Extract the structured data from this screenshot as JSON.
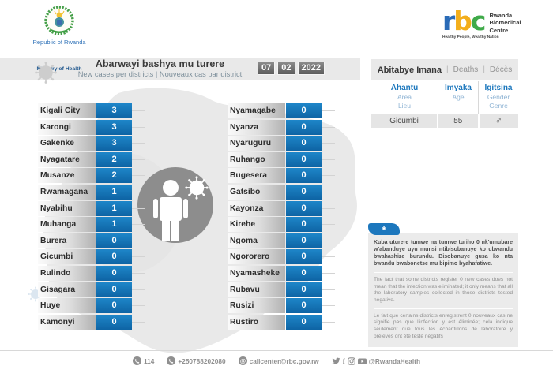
{
  "colors": {
    "accent_blue": "#1478bd",
    "band_gray": "#e9e9e9",
    "date_box_gray": "#6f6f6f",
    "note_bg": "#ebebeb",
    "muted_gray": "#8f8f8f",
    "rbc_blue": "#2a6bb7",
    "rbc_yellow": "#f3ae1b",
    "rbc_green": "#3faa49"
  },
  "ministry": {
    "country": "Republic of Rwanda",
    "name": "Ministry of Health"
  },
  "rbc": {
    "r": "r",
    "b": "b",
    "c": "c",
    "name_lines": [
      "Rwanda",
      "Biomedical",
      "Centre"
    ],
    "tagline": "Healthy People, Wealthy Nation"
  },
  "header": {
    "title": "Abarwayi bashya mu turere",
    "subtitle": "New cases per districts  |  Nouveaux cas par district",
    "date_day": "07",
    "date_month": "02",
    "date_year": "2022"
  },
  "deaths": {
    "title_rw": "Abitabye Imana",
    "sep": "|",
    "title_en": "Deaths",
    "title_fr": "Décès",
    "columns": [
      [
        "Ahantu",
        "Area",
        "Lieu"
      ],
      [
        "Imyaka",
        "Age",
        ""
      ],
      [
        "Igitsina",
        "Gender",
        "Genre"
      ]
    ],
    "row": [
      "Gicumbi",
      "55",
      "♂"
    ]
  },
  "chart_data": {
    "type": "table",
    "title": "Abarwayi bashya mu turere",
    "subtitle_en": "New cases per districts",
    "subtitle_fr": "Nouveaux cas par district",
    "date": "07 02 2022",
    "split_index": 14,
    "categories": [
      "Kigali City",
      "Karongi",
      "Gakenke",
      "Nyagatare",
      "Musanze",
      "Rwamagana",
      "Nyabihu",
      "Muhanga",
      "Burera",
      "Gicumbi",
      "Rulindo",
      "Gisagara",
      "Huye",
      "Kamonyi",
      "Nyamagabe",
      "Nyanza",
      "Nyaruguru",
      "Ruhango",
      "Bugesera",
      "Gatsibo",
      "Kayonza",
      "Kirehe",
      "Ngoma",
      "Ngororero",
      "Nyamasheke",
      "Rubavu",
      "Rusizi",
      "Rustiro"
    ],
    "values": [
      3,
      3,
      3,
      2,
      2,
      1,
      1,
      1,
      0,
      0,
      0,
      0,
      0,
      0,
      0,
      0,
      0,
      0,
      0,
      0,
      0,
      0,
      0,
      0,
      0,
      0,
      0,
      0
    ]
  },
  "note": {
    "marker": "*",
    "rw": "Kuba uturere tumwe na tumwe turiho 0 nk'umubare w'abanduye uyu munsi ntibisobanuye ko ubwandu bwahashize burundu. Bisobanuye gusa ko nta bwandu bwabonetse mu bipimo byahafatiwe.",
    "en": "The fact that some districts register 0 new cases does not mean that the infection was eliminated; it only means that all the laboratory samples collected in those districts tested negative.",
    "fr": "Le fait que certains districts enregistrent 0 nouveaux cas ne signifie pas que l'infection y est éliminée; cela indique seulement que tous les échantillons de laboratoire y prélevés ont été testé négatifs"
  },
  "footer": {
    "phone_short": "114",
    "phone": "+250788202080",
    "email": "callcenter@rbc.gov.rw",
    "social_handle": "@RwandaHealth"
  },
  "icons": {
    "virus": "virus-icon",
    "person": "person-icon",
    "phone": "phone-icon",
    "mail": "mail-icon",
    "social": [
      "twitter-icon",
      "facebook-icon",
      "instagram-icon",
      "youtube-icon"
    ],
    "gender_male_symbol": "♂"
  }
}
